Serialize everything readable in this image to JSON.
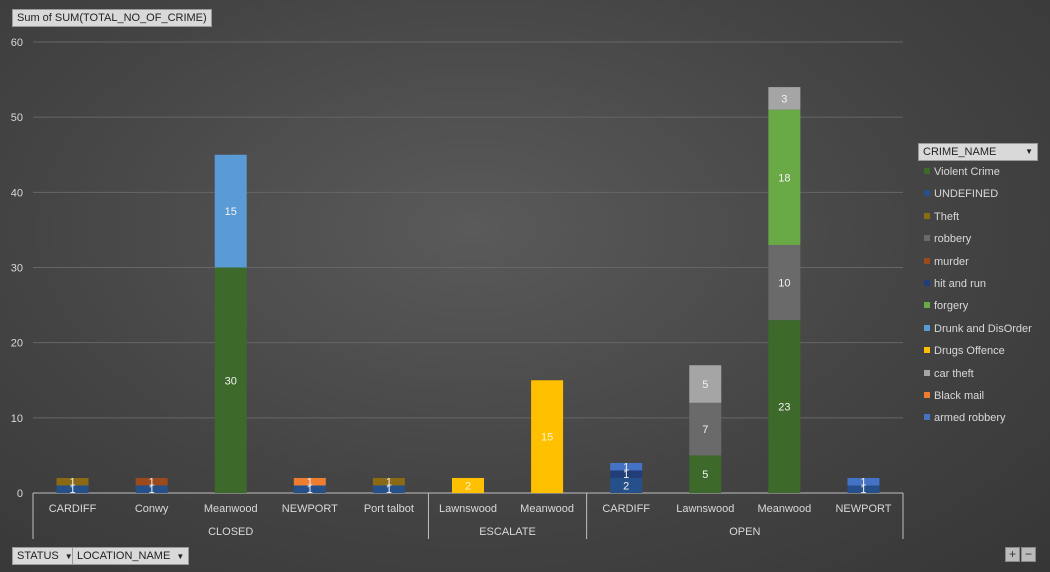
{
  "value_field": "Sum of SUM(TOTAL_NO_OF_CRIME)",
  "row_fields": [
    "STATUS",
    "LOCATION_NAME"
  ],
  "legend_field": "CRIME_NAME",
  "zoom": {
    "plus": "+",
    "minus": "−"
  },
  "chart_data": {
    "type": "bar",
    "stacked": true,
    "ylim": [
      0,
      60
    ],
    "yticks": [
      0,
      10,
      20,
      30,
      40,
      50,
      60
    ],
    "grid": true,
    "legend_position": "right",
    "groups": [
      {
        "label": "CLOSED",
        "categories": [
          "CARDIFF",
          "Conwy",
          "Meanwood",
          "NEWPORT",
          "Port talbot"
        ]
      },
      {
        "label": "ESCALATE",
        "categories": [
          "Lawnswood",
          "Meanwood"
        ]
      },
      {
        "label": "OPEN",
        "categories": [
          "CARDIFF",
          "Lawnswood",
          "Meanwood",
          "NEWPORT"
        ]
      }
    ],
    "categories": [
      "CARDIFF",
      "Conwy",
      "Meanwood",
      "NEWPORT",
      "Port talbot",
      "Lawnswood",
      "Meanwood",
      "CARDIFF",
      "Lawnswood",
      "Meanwood",
      "NEWPORT"
    ],
    "series": [
      {
        "name": "Violent Crime",
        "color": "#3d6a2a",
        "values": [
          0,
          0,
          30,
          0,
          0,
          0,
          0,
          0,
          5,
          23,
          0
        ]
      },
      {
        "name": "UNDEFINED",
        "color": "#26508a",
        "values": [
          1,
          1,
          0,
          1,
          1,
          0,
          0,
          2,
          0,
          0,
          1
        ]
      },
      {
        "name": "Theft",
        "color": "#8a6a14",
        "values": [
          1,
          0,
          0,
          0,
          1,
          0,
          0,
          0,
          0,
          0,
          0
        ]
      },
      {
        "name": "robbery",
        "color": "#6a6a6a",
        "values": [
          0,
          0,
          0,
          0,
          0,
          0,
          0,
          0,
          7,
          10,
          0
        ]
      },
      {
        "name": "murder",
        "color": "#9a4a1c",
        "values": [
          0,
          1,
          0,
          0,
          0,
          0,
          0,
          0,
          0,
          0,
          0
        ]
      },
      {
        "name": "hit and run",
        "color": "#223e78",
        "values": [
          0,
          0,
          0,
          0,
          0,
          0,
          0,
          1,
          0,
          0,
          0
        ]
      },
      {
        "name": "forgery",
        "color": "#6aaa46",
        "values": [
          0,
          0,
          0,
          0,
          0,
          0,
          0,
          0,
          0,
          18,
          0
        ]
      },
      {
        "name": "Drunk and DisOrder",
        "color": "#5b9bd5",
        "values": [
          0,
          0,
          15,
          0,
          0,
          0,
          0,
          0,
          0,
          0,
          0
        ]
      },
      {
        "name": "Drugs Offence",
        "color": "#ffc000",
        "values": [
          0,
          0,
          0,
          0,
          0,
          2,
          15,
          0,
          0,
          0,
          0
        ]
      },
      {
        "name": "car theft",
        "color": "#a5a5a5",
        "values": [
          0,
          0,
          0,
          0,
          0,
          0,
          0,
          0,
          5,
          3,
          0
        ]
      },
      {
        "name": "Black mail",
        "color": "#ed7d31",
        "values": [
          0,
          0,
          0,
          1,
          0,
          0,
          0,
          0,
          0,
          0,
          0
        ]
      },
      {
        "name": "armed robbery",
        "color": "#4472c4",
        "values": [
          0,
          0,
          0,
          0,
          0,
          0,
          0,
          1,
          0,
          0,
          1
        ]
      }
    ]
  }
}
